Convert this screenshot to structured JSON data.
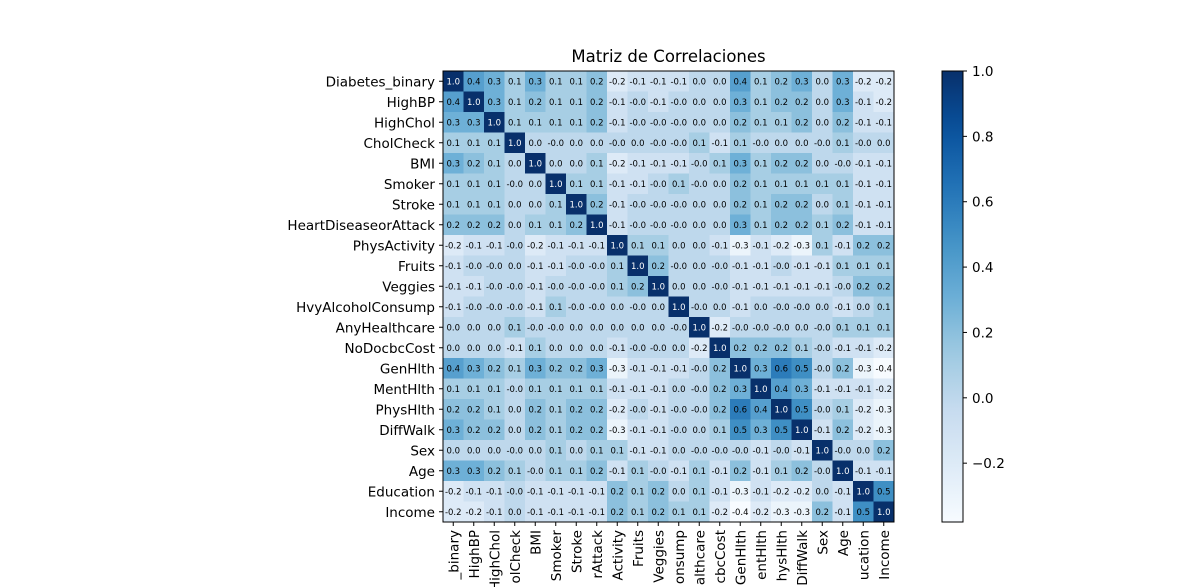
{
  "chart_data": {
    "type": "heatmap",
    "title": "Matriz de Correlaciones",
    "variables": [
      "Diabetes_binary",
      "HighBP",
      "HighChol",
      "CholCheck",
      "BMI",
      "Smoker",
      "Stroke",
      "HeartDiseaseorAttack",
      "PhysActivity",
      "Fruits",
      "Veggies",
      "HvyAlcoholConsump",
      "AnyHealthcare",
      "NoDocbcCost",
      "GenHlth",
      "MentHlth",
      "PhysHlth",
      "DiffWalk",
      "Sex",
      "Age",
      "Education",
      "Income"
    ],
    "matrix": [
      [
        1.0,
        0.4,
        0.3,
        0.1,
        0.3,
        0.1,
        0.1,
        0.2,
        -0.2,
        -0.1,
        -0.1,
        -0.1,
        0.0,
        0.0,
        0.4,
        0.1,
        0.2,
        0.3,
        0.0,
        0.3,
        -0.2,
        -0.2
      ],
      [
        0.4,
        1.0,
        0.3,
        0.1,
        0.2,
        0.1,
        0.1,
        0.2,
        -0.1,
        -0.0,
        -0.1,
        -0.0,
        0.0,
        0.0,
        0.3,
        0.1,
        0.2,
        0.2,
        0.0,
        0.3,
        -0.1,
        -0.2
      ],
      [
        0.3,
        0.3,
        1.0,
        0.1,
        0.1,
        0.1,
        0.1,
        0.2,
        -0.1,
        -0.0,
        -0.0,
        -0.0,
        0.0,
        0.0,
        0.2,
        0.1,
        0.1,
        0.2,
        0.0,
        0.2,
        -0.1,
        -0.1
      ],
      [
        0.1,
        0.1,
        0.1,
        1.0,
        0.0,
        -0.0,
        0.0,
        0.0,
        -0.0,
        0.0,
        -0.0,
        -0.0,
        0.1,
        -0.1,
        0.1,
        -0.0,
        0.0,
        0.0,
        -0.0,
        0.1,
        -0.0,
        0.0
      ],
      [
        0.3,
        0.2,
        0.1,
        0.0,
        1.0,
        0.0,
        0.0,
        0.1,
        -0.2,
        -0.1,
        -0.1,
        -0.1,
        -0.0,
        0.1,
        0.3,
        0.1,
        0.2,
        0.2,
        0.0,
        -0.0,
        -0.1,
        -0.1
      ],
      [
        0.1,
        0.1,
        0.1,
        -0.0,
        0.0,
        1.0,
        0.1,
        0.1,
        -0.1,
        -0.1,
        -0.0,
        0.1,
        -0.0,
        0.0,
        0.2,
        0.1,
        0.1,
        0.1,
        0.1,
        0.1,
        -0.1,
        -0.1
      ],
      [
        0.1,
        0.1,
        0.1,
        0.0,
        0.0,
        0.1,
        1.0,
        0.2,
        -0.1,
        -0.0,
        -0.0,
        -0.0,
        0.0,
        0.0,
        0.2,
        0.1,
        0.2,
        0.2,
        0.0,
        0.1,
        -0.1,
        -0.1
      ],
      [
        0.2,
        0.2,
        0.2,
        0.0,
        0.1,
        0.1,
        0.2,
        1.0,
        -0.1,
        -0.0,
        -0.0,
        -0.0,
        0.0,
        0.0,
        0.3,
        0.1,
        0.2,
        0.2,
        0.1,
        0.2,
        -0.1,
        -0.1
      ],
      [
        -0.2,
        -0.1,
        -0.1,
        -0.0,
        -0.2,
        -0.1,
        -0.1,
        -0.1,
        1.0,
        0.1,
        0.1,
        0.0,
        0.0,
        -0.1,
        -0.3,
        -0.1,
        -0.2,
        -0.3,
        0.1,
        -0.1,
        0.2,
        0.2
      ],
      [
        -0.1,
        -0.0,
        -0.0,
        0.0,
        -0.1,
        -0.1,
        -0.0,
        -0.0,
        0.1,
        1.0,
        0.2,
        -0.0,
        0.0,
        -0.0,
        -0.1,
        -0.1,
        -0.0,
        -0.1,
        -0.1,
        0.1,
        0.1,
        0.1
      ],
      [
        -0.1,
        -0.1,
        -0.0,
        -0.0,
        -0.1,
        -0.0,
        -0.0,
        -0.0,
        0.1,
        0.2,
        1.0,
        0.0,
        0.0,
        -0.0,
        -0.1,
        -0.1,
        -0.1,
        -0.1,
        -0.1,
        -0.0,
        0.2,
        0.2
      ],
      [
        -0.1,
        -0.0,
        -0.0,
        -0.0,
        -0.1,
        0.1,
        -0.0,
        -0.0,
        0.0,
        -0.0,
        0.0,
        1.0,
        -0.0,
        0.0,
        -0.1,
        0.0,
        -0.0,
        -0.0,
        0.0,
        -0.1,
        0.0,
        0.1
      ],
      [
        0.0,
        0.0,
        0.0,
        0.1,
        -0.0,
        -0.0,
        0.0,
        0.0,
        0.0,
        0.0,
        0.0,
        -0.0,
        1.0,
        -0.2,
        -0.0,
        -0.0,
        -0.0,
        0.0,
        -0.0,
        0.1,
        0.1,
        0.1
      ],
      [
        0.0,
        0.0,
        0.0,
        -0.1,
        0.1,
        0.0,
        0.0,
        0.0,
        -0.1,
        -0.0,
        -0.0,
        0.0,
        -0.2,
        1.0,
        0.2,
        0.2,
        0.2,
        0.1,
        -0.0,
        -0.1,
        -0.1,
        -0.2
      ],
      [
        0.4,
        0.3,
        0.2,
        0.1,
        0.3,
        0.2,
        0.2,
        0.3,
        -0.3,
        -0.1,
        -0.1,
        -0.1,
        -0.0,
        0.2,
        1.0,
        0.3,
        0.6,
        0.5,
        -0.0,
        0.2,
        -0.3,
        -0.4
      ],
      [
        0.1,
        0.1,
        0.1,
        -0.0,
        0.1,
        0.1,
        0.1,
        0.1,
        -0.1,
        -0.1,
        -0.1,
        0.0,
        -0.0,
        0.2,
        0.3,
        1.0,
        0.4,
        0.3,
        -0.1,
        -0.1,
        -0.1,
        -0.2
      ],
      [
        0.2,
        0.2,
        0.1,
        0.0,
        0.2,
        0.1,
        0.2,
        0.2,
        -0.2,
        -0.0,
        -0.1,
        -0.0,
        -0.0,
        0.2,
        0.6,
        0.4,
        1.0,
        0.5,
        -0.0,
        0.1,
        -0.2,
        -0.3
      ],
      [
        0.3,
        0.2,
        0.2,
        0.0,
        0.2,
        0.1,
        0.2,
        0.2,
        -0.3,
        -0.1,
        -0.1,
        -0.0,
        0.0,
        0.1,
        0.5,
        0.3,
        0.5,
        1.0,
        -0.1,
        0.2,
        -0.2,
        -0.3
      ],
      [
        0.0,
        0.0,
        0.0,
        -0.0,
        0.0,
        0.1,
        0.0,
        0.1,
        0.1,
        -0.1,
        -0.1,
        0.0,
        -0.0,
        -0.0,
        -0.0,
        -0.1,
        -0.0,
        -0.1,
        1.0,
        -0.0,
        0.0,
        0.2
      ],
      [
        0.3,
        0.3,
        0.2,
        0.1,
        -0.0,
        0.1,
        0.1,
        0.2,
        -0.1,
        0.1,
        -0.0,
        -0.1,
        0.1,
        -0.1,
        0.2,
        -0.1,
        0.1,
        0.2,
        -0.0,
        1.0,
        -0.1,
        -0.1
      ],
      [
        -0.2,
        -0.1,
        -0.1,
        -0.0,
        -0.1,
        -0.1,
        -0.1,
        -0.1,
        0.2,
        0.1,
        0.2,
        0.0,
        0.1,
        -0.1,
        -0.3,
        -0.1,
        -0.2,
        -0.2,
        0.0,
        -0.1,
        1.0,
        0.5
      ],
      [
        -0.2,
        -0.2,
        -0.1,
        0.0,
        -0.1,
        -0.1,
        -0.1,
        -0.1,
        0.2,
        0.1,
        0.2,
        0.1,
        0.1,
        -0.2,
        -0.4,
        -0.2,
        -0.3,
        -0.3,
        0.2,
        -0.1,
        0.5,
        1.0
      ]
    ],
    "x_tick_labels": [
      "_binary",
      "HighBP",
      "HighChol",
      "olCheck",
      "BMI",
      "Smoker",
      "Stroke",
      "rAttack",
      "Activity",
      "Fruits",
      "Veggies",
      "onsump",
      "althcare",
      "cbcCost",
      "GenHlth",
      "entHlth",
      "hysHlth",
      "DiffWalk",
      "Sex",
      "Age",
      "ucation",
      "Income"
    ],
    "colormap": "Blues",
    "value_range": [
      -0.38,
      1.0
    ],
    "colorbar_ticks": [
      "1.0",
      "0.8",
      "0.6",
      "0.4",
      "0.2",
      "0.0",
      "−0.2"
    ],
    "cell_labels_format": "1 decimal",
    "grid": false
  }
}
